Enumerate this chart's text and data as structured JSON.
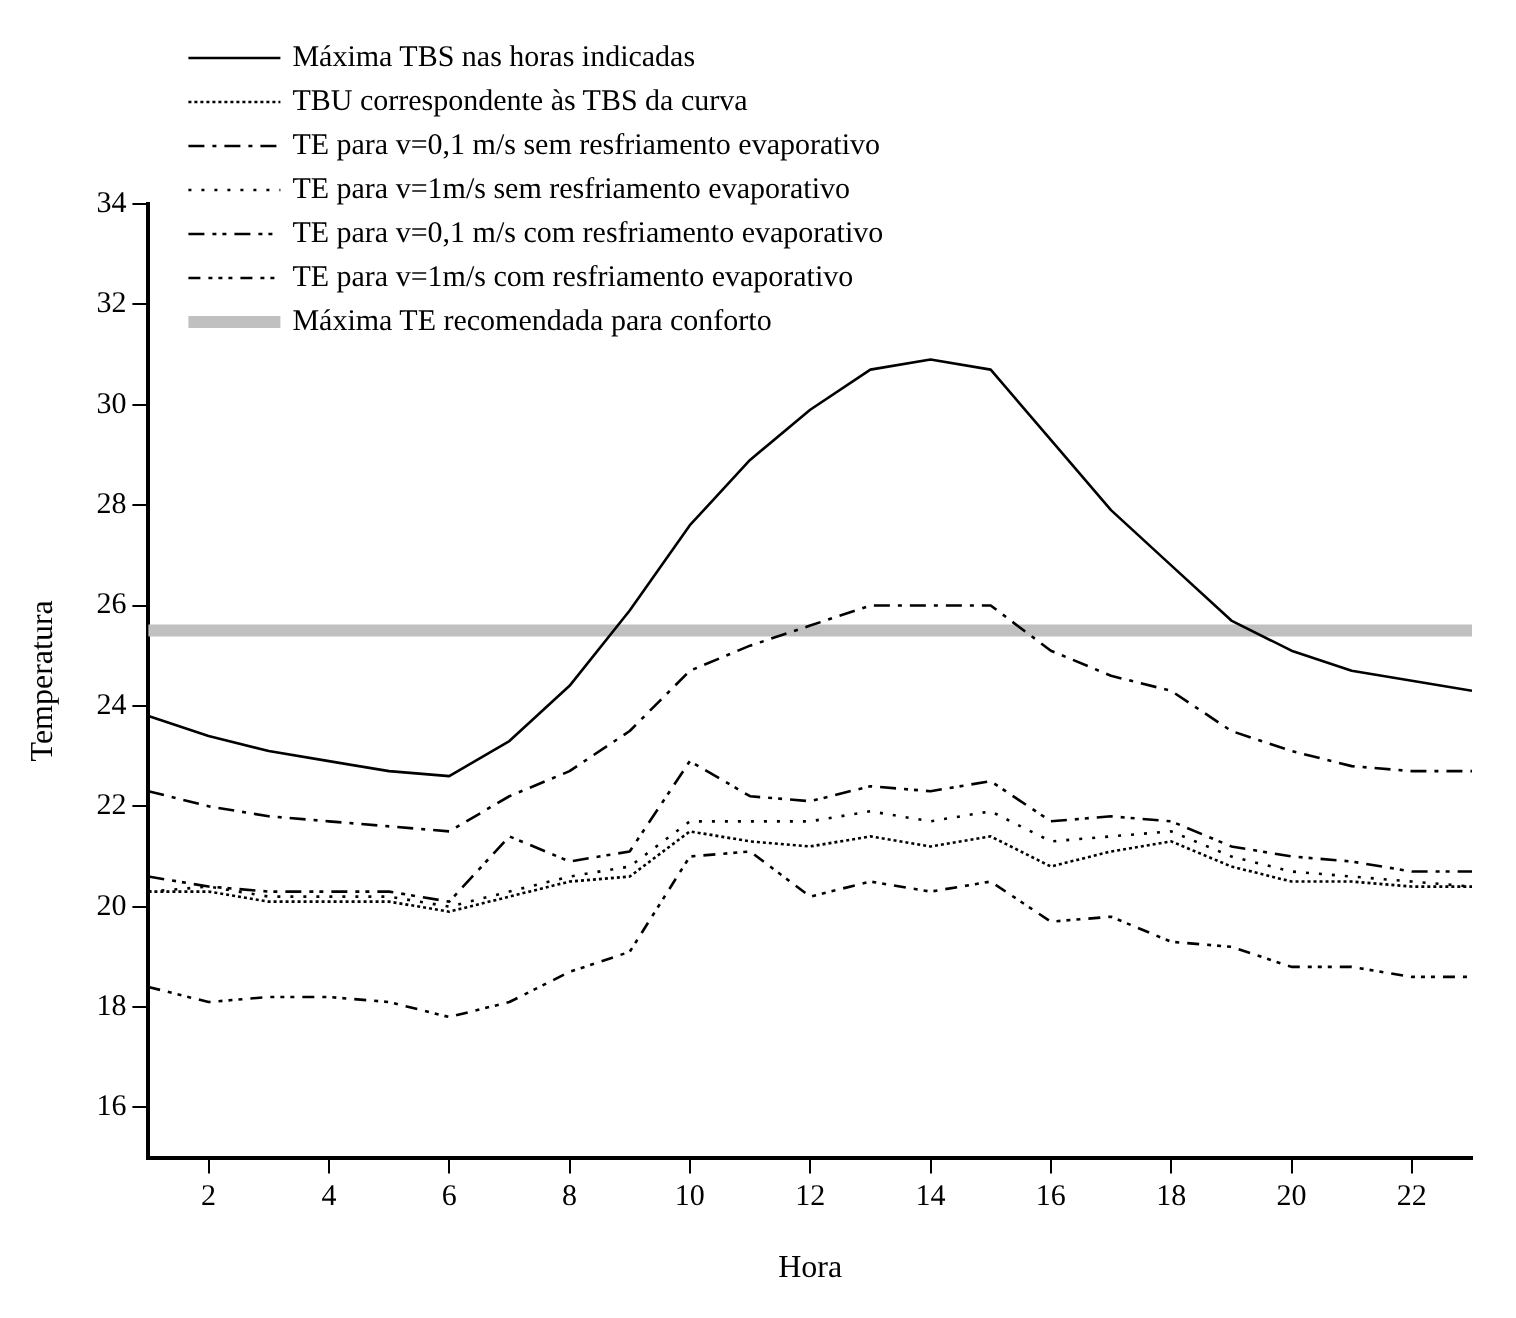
{
  "chart_data": {
    "type": "line",
    "xlabel": "Hora",
    "ylabel": "Temperatura",
    "x": [
      1,
      2,
      3,
      4,
      5,
      6,
      7,
      8,
      9,
      10,
      11,
      12,
      13,
      14,
      15,
      16,
      17,
      18,
      19,
      20,
      21,
      22,
      23
    ],
    "xlim": [
      1,
      23
    ],
    "xticks": [
      2,
      4,
      6,
      8,
      10,
      12,
      14,
      16,
      18,
      20,
      22
    ],
    "ylim": [
      15,
      34
    ],
    "yticks": [
      16,
      18,
      20,
      22,
      24,
      26,
      28,
      30,
      32,
      34
    ],
    "grid": false,
    "legend": "top",
    "marker": "none",
    "series": [
      {
        "name": "Máxima TBS nas horas indicadas",
        "color": "#000000",
        "line_style": "solid",
        "values": [
          23.8,
          23.4,
          23.1,
          22.9,
          22.7,
          22.6,
          23.3,
          24.4,
          25.9,
          27.6,
          28.9,
          29.9,
          30.7,
          30.9,
          30.7,
          29.3,
          27.9,
          26.8,
          25.7,
          25.1,
          24.7,
          24.5,
          24.3
        ]
      },
      {
        "name": "TBU correspondente às TBS da curva",
        "color": "#000000",
        "line_style": "dotted",
        "values": [
          20.3,
          20.3,
          20.1,
          20.1,
          20.1,
          19.9,
          20.2,
          20.5,
          20.6,
          21.5,
          21.3,
          21.2,
          21.4,
          21.2,
          21.4,
          20.8,
          21.1,
          21.3,
          20.8,
          20.5,
          20.5,
          20.4,
          20.4
        ]
      },
      {
        "name": "TE para v=0,1 m/s sem resfriamento evaporativo",
        "color": "#000000",
        "line_style": "dashed",
        "values": [
          22.3,
          22.0,
          21.8,
          21.7,
          21.6,
          21.5,
          22.2,
          22.7,
          23.5,
          24.7,
          25.2,
          25.6,
          26.0,
          26.0,
          26.0,
          25.1,
          24.6,
          24.3,
          23.5,
          23.1,
          22.8,
          22.7,
          22.7
        ]
      },
      {
        "name": "TE para v=1m/s sem resfriamento evaporativo",
        "color": "#000000",
        "line_style": "dotted",
        "values": [
          20.3,
          20.4,
          20.2,
          20.2,
          20.2,
          20.0,
          20.3,
          20.6,
          20.8,
          21.7,
          21.7,
          21.7,
          21.9,
          21.7,
          21.9,
          21.3,
          21.4,
          21.5,
          21.0,
          20.7,
          20.6,
          20.5,
          20.4
        ]
      },
      {
        "name": "TE para v=0,1 m/s com resfriamento evaporativo",
        "color": "#000000",
        "line_style": "dashed",
        "values": [
          20.6,
          20.4,
          20.3,
          20.3,
          20.3,
          20.1,
          21.4,
          20.9,
          21.1,
          22.9,
          22.2,
          22.1,
          22.4,
          22.3,
          22.5,
          21.7,
          21.8,
          21.7,
          21.2,
          21.0,
          20.9,
          20.7,
          20.7
        ]
      },
      {
        "name": "TE para v=1m/s com resfriamento evaporativo",
        "color": "#000000",
        "line_style": "dashed",
        "values": [
          18.4,
          18.1,
          18.2,
          18.2,
          18.1,
          17.8,
          18.1,
          18.7,
          19.1,
          21.0,
          21.1,
          20.2,
          20.5,
          20.3,
          20.5,
          19.7,
          19.8,
          19.3,
          19.2,
          18.8,
          18.8,
          18.6,
          18.6
        ]
      }
    ],
    "ref_lines": [
      {
        "axis": "y",
        "value": 25.5,
        "label": "Máxima TE recomendada para conforto",
        "color": "#c0c0c0",
        "line_style": "solid"
      }
    ]
  }
}
